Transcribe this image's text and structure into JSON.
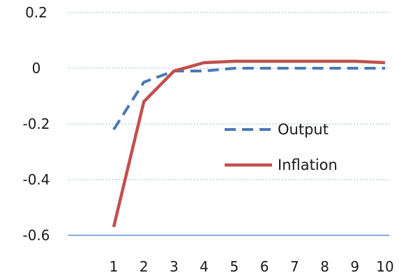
{
  "chart_data": {
    "type": "line",
    "x": [
      1,
      2,
      3,
      4,
      5,
      6,
      7,
      8,
      9,
      10
    ],
    "series": [
      {
        "name": "Output",
        "color": "#4a7ab5",
        "style": "dashed",
        "values": [
          -0.22,
          -0.05,
          -0.01,
          -0.01,
          0.0,
          0.0,
          0.0,
          0.0,
          0.0,
          0.0
        ]
      },
      {
        "name": "Inflation",
        "color": "#c0504d",
        "style": "solid",
        "values": [
          -0.57,
          -0.12,
          -0.01,
          0.02,
          0.025,
          0.025,
          0.025,
          0.025,
          0.025,
          0.02
        ]
      }
    ],
    "y_ticks": [
      0.2,
      0,
      -0.2,
      -0.4,
      -0.6
    ],
    "y_tick_labels": [
      "0.2",
      "0",
      "-0.2",
      "-0.4",
      "-0.6"
    ],
    "x_tick_labels": [
      "1",
      "2",
      "3",
      "4",
      "5",
      "6",
      "7",
      "8",
      "9",
      "10"
    ],
    "ylim": [
      -0.6,
      0.2
    ],
    "xlim": [
      1,
      10
    ],
    "grid": "horizontal-dotted",
    "legend_position": "center-right",
    "axis_color": "#5b8fd0",
    "grid_color": "#8fb3e0"
  }
}
